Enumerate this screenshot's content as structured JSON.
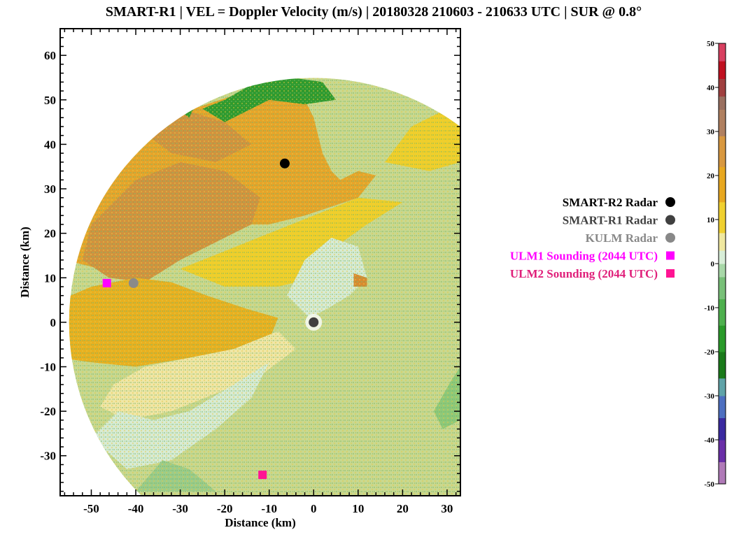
{
  "chart_data": {
    "type": "heatmap",
    "title": "SMART-R1 | VEL = Doppler Velocity (m/s) | 20180328 210603 - 210633 UTC | SUR @ 0.8°",
    "xlabel": "Distance (km)",
    "ylabel": "Distance (km)",
    "xlim": [
      -57,
      33
    ],
    "ylim": [
      -39,
      66
    ],
    "xticks": [
      "-50",
      "-40",
      "-30",
      "-20",
      "-10",
      "0",
      "10",
      "20",
      "30"
    ],
    "yticks": [
      "60",
      "50",
      "40",
      "30",
      "20",
      "10",
      "0",
      "-10",
      "-20",
      "-30"
    ],
    "radar_range_km": 55,
    "field": "Doppler Velocity (m/s)",
    "markers": [
      {
        "name": "SMART-R2 Radar",
        "x": -6.5,
        "y": 35.7,
        "shape": "circle",
        "color": "#000000"
      },
      {
        "name": "SMART-R1 Radar",
        "x": 0,
        "y": 0,
        "shape": "circle",
        "color": "#404040"
      },
      {
        "name": "KULM Radar",
        "x": -40.5,
        "y": 8.8,
        "shape": "circle",
        "color": "#8a8a8a"
      },
      {
        "name": "ULM1 Sounding (2044 UTC)",
        "x": -46.5,
        "y": 8.8,
        "shape": "square",
        "color": "#ff00ff"
      },
      {
        "name": "ULM2 Sounding (2044 UTC)",
        "x": -11.5,
        "y": -34.3,
        "shape": "square",
        "color": "#ff1493"
      }
    ],
    "colorbar": {
      "min": -50,
      "max": 50,
      "tick_labels": [
        "50",
        "40",
        "30",
        "20",
        "10",
        "0",
        "-10",
        "-20",
        "-30",
        "-40",
        "-50"
      ],
      "stops": [
        {
          "value": -50,
          "color": "#b07ab8"
        },
        {
          "value": -45,
          "color": "#6a2fa8"
        },
        {
          "value": -40,
          "color": "#3a2aa0"
        },
        {
          "value": -35,
          "color": "#4d6fc0"
        },
        {
          "value": -30,
          "color": "#5fa3a8"
        },
        {
          "value": -26,
          "color": "#1a7a1a"
        },
        {
          "value": -20,
          "color": "#2a9a2a"
        },
        {
          "value": -14,
          "color": "#4eb04e"
        },
        {
          "value": -8,
          "color": "#78c078"
        },
        {
          "value": -3,
          "color": "#a8d8a8"
        },
        {
          "value": 0,
          "color": "#d8eed8"
        },
        {
          "value": 3,
          "color": "#f0e8a0"
        },
        {
          "value": 7,
          "color": "#f0d030"
        },
        {
          "value": 14,
          "color": "#e8a820"
        },
        {
          "value": 22,
          "color": "#d89840"
        },
        {
          "value": 29,
          "color": "#b08060"
        },
        {
          "value": 35,
          "color": "#9a7060"
        },
        {
          "value": 38,
          "color": "#a04040"
        },
        {
          "value": 42,
          "color": "#c01020"
        },
        {
          "value": 46,
          "color": "#d84060"
        },
        {
          "value": 50,
          "color": "#f06080"
        }
      ]
    },
    "regions": [
      {
        "kind": "background",
        "color": "#c8d890"
      },
      {
        "kind": "polygon",
        "color": "#e6a42a",
        "points": [
          [
            -56,
            22
          ],
          [
            -44,
            36
          ],
          [
            -30,
            47
          ],
          [
            -15,
            52
          ],
          [
            -5,
            54
          ],
          [
            -2,
            50
          ],
          [
            0,
            46
          ],
          [
            2,
            38
          ],
          [
            4,
            34
          ],
          [
            6,
            32
          ],
          [
            10,
            34
          ],
          [
            14,
            33
          ],
          [
            10,
            28
          ],
          [
            4,
            26
          ],
          [
            -2,
            24
          ],
          [
            -10,
            22
          ],
          [
            -18,
            22
          ],
          [
            -26,
            20
          ],
          [
            -34,
            18
          ],
          [
            -40,
            14
          ],
          [
            -48,
            12
          ],
          [
            -56,
            14
          ]
        ]
      },
      {
        "kind": "polygon",
        "color": "#d2923e",
        "points": [
          [
            -50,
            22
          ],
          [
            -40,
            32
          ],
          [
            -30,
            36
          ],
          [
            -20,
            34
          ],
          [
            -12,
            28
          ],
          [
            -14,
            22
          ],
          [
            -22,
            18
          ],
          [
            -30,
            14
          ],
          [
            -38,
            9
          ],
          [
            -46,
            10
          ],
          [
            -52,
            14
          ]
        ]
      },
      {
        "kind": "polygon",
        "color": "#d2923e",
        "points": [
          [
            -40,
            44
          ],
          [
            -30,
            48
          ],
          [
            -20,
            45
          ],
          [
            -14,
            40
          ],
          [
            -22,
            36
          ],
          [
            -32,
            38
          ]
        ]
      },
      {
        "kind": "polygon",
        "color": "#e8b020",
        "points": [
          [
            -57,
            5
          ],
          [
            -50,
            8
          ],
          [
            -40,
            10
          ],
          [
            -32,
            9
          ],
          [
            -24,
            6
          ],
          [
            -15,
            3
          ],
          [
            -8,
            1
          ],
          [
            -10,
            -4
          ],
          [
            -18,
            -6
          ],
          [
            -28,
            -8
          ],
          [
            -40,
            -10
          ],
          [
            -50,
            -9
          ],
          [
            -57,
            -8
          ]
        ]
      },
      {
        "kind": "polygon",
        "color": "#f0cf2a",
        "points": [
          [
            -30,
            12
          ],
          [
            -20,
            16
          ],
          [
            -10,
            20
          ],
          [
            0,
            24
          ],
          [
            10,
            28
          ],
          [
            20,
            27
          ],
          [
            12,
            22
          ],
          [
            5,
            17
          ],
          [
            0,
            10
          ],
          [
            -8,
            8
          ],
          [
            -20,
            8
          ]
        ]
      },
      {
        "kind": "polygon",
        "color": "#f0cf2a",
        "points": [
          [
            16,
            36
          ],
          [
            22,
            44
          ],
          [
            30,
            48
          ],
          [
            33,
            46
          ],
          [
            33,
            36
          ],
          [
            26,
            34
          ]
        ]
      },
      {
        "kind": "polygon",
        "color": "#efe6a6",
        "points": [
          [
            -45,
            -14
          ],
          [
            -38,
            -10
          ],
          [
            -28,
            -8
          ],
          [
            -18,
            -6
          ],
          [
            -8,
            -2
          ],
          [
            -4,
            -6
          ],
          [
            -12,
            -12
          ],
          [
            -22,
            -16
          ],
          [
            -32,
            -20
          ],
          [
            -42,
            -22
          ],
          [
            -48,
            -19
          ]
        ]
      },
      {
        "kind": "polygon",
        "color": "#d7ebd4",
        "points": [
          [
            -50,
            -26
          ],
          [
            -44,
            -20
          ],
          [
            -36,
            -22
          ],
          [
            -28,
            -20
          ],
          [
            -18,
            -14
          ],
          [
            -10,
            -9
          ],
          [
            -14,
            -17
          ],
          [
            -22,
            -24
          ],
          [
            -32,
            -31
          ],
          [
            -42,
            -33
          ]
        ]
      },
      {
        "kind": "polygon",
        "color": "#d7ebd4",
        "points": [
          [
            -6,
            6
          ],
          [
            -2,
            14
          ],
          [
            4,
            19
          ],
          [
            10,
            17
          ],
          [
            12,
            10
          ],
          [
            8,
            6
          ],
          [
            3,
            3
          ],
          [
            -1,
            1
          ]
        ]
      },
      {
        "kind": "polygon",
        "color": "#9bcc8a",
        "points": [
          [
            -40,
            -38
          ],
          [
            -34,
            -31
          ],
          [
            -28,
            -33
          ],
          [
            -22,
            -38
          ]
        ]
      },
      {
        "kind": "polygon",
        "color": "#2e9a2e",
        "points": [
          [
            -25,
            48
          ],
          [
            -20,
            50
          ],
          [
            -13,
            54
          ],
          [
            -5,
            55
          ],
          [
            2,
            54
          ],
          [
            5,
            50
          ],
          [
            -2,
            49
          ],
          [
            -10,
            50
          ],
          [
            -16,
            47
          ],
          [
            -20,
            45
          ]
        ]
      },
      {
        "kind": "polygon",
        "color": "#2e9a2e",
        "points": [
          [
            -27,
            48
          ],
          [
            -32,
            49
          ],
          [
            -28,
            46
          ]
        ]
      },
      {
        "kind": "polygon",
        "color": "#8ec97a",
        "points": [
          [
            27,
            -20
          ],
          [
            31,
            -13
          ],
          [
            33,
            -10
          ],
          [
            33,
            -22
          ],
          [
            29,
            -24
          ]
        ]
      },
      {
        "kind": "polygon",
        "color": "#d88a30",
        "points": [
          [
            9,
            8
          ],
          [
            12,
            8
          ],
          [
            12,
            10
          ],
          [
            9,
            11
          ]
        ]
      }
    ]
  },
  "legend": [
    {
      "label": "SMART-R2 Radar",
      "color": "#000000",
      "marker": "circle",
      "marker_color": "#000000"
    },
    {
      "label": "SMART-R1 Radar",
      "color": "#404040",
      "marker": "circle",
      "marker_color": "#404040"
    },
    {
      "label": "KULM Radar",
      "color": "#888888",
      "marker": "circle",
      "marker_color": "#888888"
    },
    {
      "label": "ULM1 Sounding (2044 UTC)",
      "color": "#ff00ff",
      "marker": "square",
      "marker_color": "#ff00ff"
    },
    {
      "label": "ULM2 Sounding (2044 UTC)",
      "color": "#e0207a",
      "marker": "square",
      "marker_color": "#ff1493"
    }
  ]
}
